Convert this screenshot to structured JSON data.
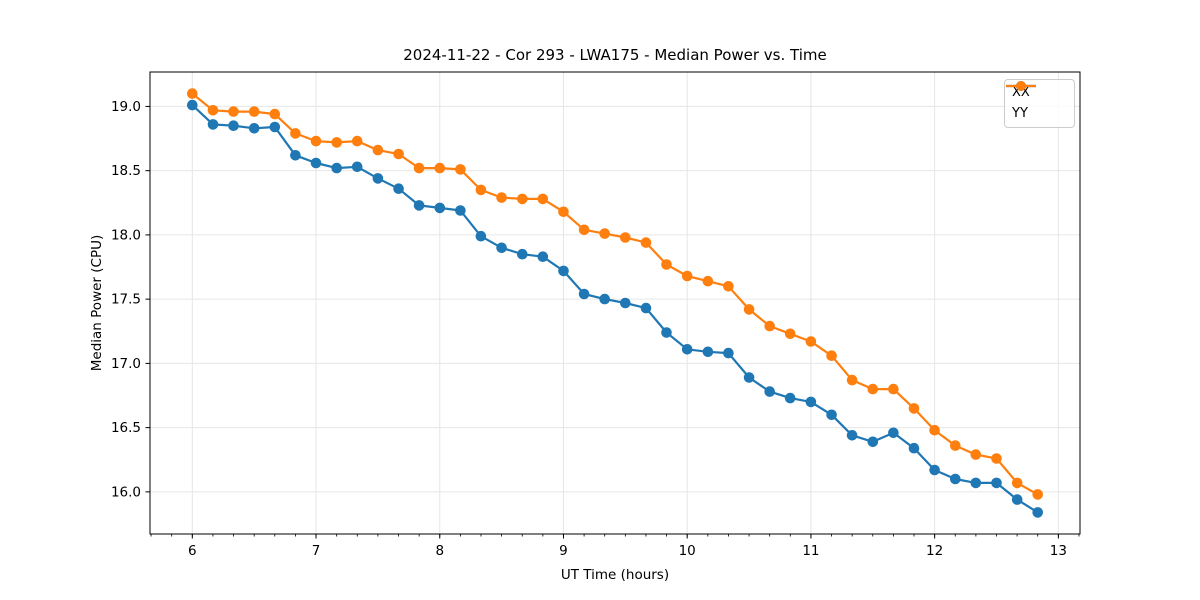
{
  "chart_data": {
    "type": "line",
    "title": "2024-11-22 - Cor 293 - LWA175 - Median Power vs. Time",
    "xlabel": "UT Time (hours)",
    "ylabel": "Median Power (CPU)",
    "x": [
      6.0,
      6.167,
      6.333,
      6.5,
      6.667,
      6.833,
      7.0,
      7.167,
      7.333,
      7.5,
      7.667,
      7.833,
      8.0,
      8.167,
      8.333,
      8.5,
      8.667,
      8.833,
      9.0,
      9.167,
      9.333,
      9.5,
      9.667,
      9.833,
      10.0,
      10.167,
      10.333,
      10.5,
      10.667,
      10.833,
      11.0,
      11.167,
      11.333,
      11.5,
      11.667,
      11.833,
      12.0,
      12.167,
      12.333,
      12.5,
      12.667,
      12.833
    ],
    "series": [
      {
        "name": "XX",
        "color": "#1f77b4",
        "values": [
          19.01,
          18.86,
          18.85,
          18.83,
          18.84,
          18.62,
          18.56,
          18.52,
          18.53,
          18.44,
          18.36,
          18.23,
          18.21,
          18.19,
          17.99,
          17.9,
          17.85,
          17.83,
          17.72,
          17.54,
          17.5,
          17.47,
          17.43,
          17.24,
          17.11,
          17.09,
          17.08,
          16.89,
          16.78,
          16.73,
          16.7,
          16.6,
          16.44,
          16.39,
          16.46,
          16.34,
          16.17,
          16.1,
          16.07,
          16.07,
          15.94,
          15.84
        ]
      },
      {
        "name": "YY",
        "color": "#ff7f0e",
        "values": [
          19.1,
          18.97,
          18.96,
          18.96,
          18.94,
          18.79,
          18.73,
          18.72,
          18.73,
          18.66,
          18.63,
          18.52,
          18.52,
          18.51,
          18.35,
          18.29,
          18.28,
          18.28,
          18.18,
          18.04,
          18.01,
          17.98,
          17.94,
          17.77,
          17.68,
          17.64,
          17.6,
          17.42,
          17.29,
          17.23,
          17.17,
          17.06,
          16.87,
          16.8,
          16.8,
          16.65,
          16.48,
          16.36,
          16.29,
          16.26,
          16.07,
          15.98
        ]
      }
    ],
    "xlim": [
      5.658,
      13.175
    ],
    "ylim": [
      15.672,
      19.268
    ],
    "xticks": [
      6,
      7,
      8,
      9,
      10,
      11,
      12,
      13
    ],
    "yticks": [
      16.0,
      16.5,
      17.0,
      17.5,
      18.0,
      18.5,
      19.0
    ],
    "x_minor_step": 0.166667,
    "grid": "major",
    "grid_color": "#e6e6e6",
    "spine_color": "#000000",
    "marker": "circle",
    "legend": {
      "position": "upper right",
      "entries": [
        "XX",
        "YY"
      ]
    }
  }
}
